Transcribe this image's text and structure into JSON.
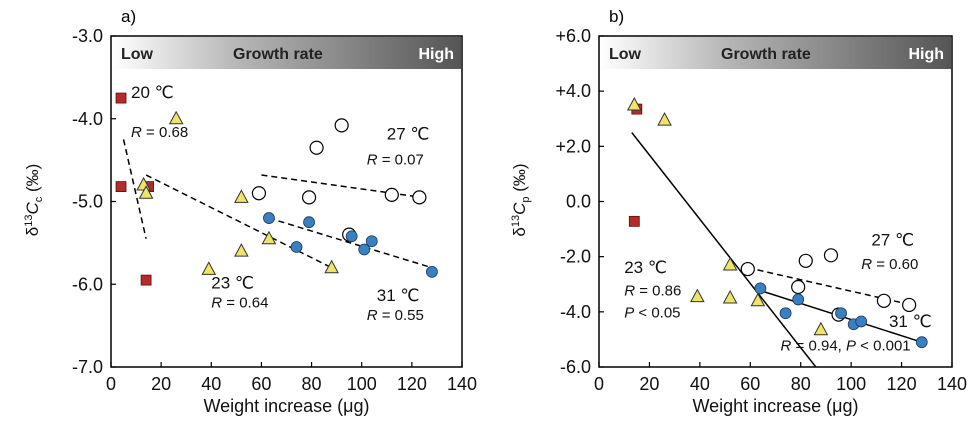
{
  "chart_data": [
    {
      "type": "scatter",
      "panel": "a)",
      "xlabel": "Weight increase (μg)",
      "ylabel_main": "δ",
      "ylabel_sup": "13",
      "ylabel_c": "C",
      "ylabel_sub": "c",
      "ylabel_unit": " (‰)",
      "xlim": [
        0,
        140
      ],
      "ylim": [
        -7.0,
        -3.0
      ],
      "xticks": [
        0,
        20,
        40,
        60,
        80,
        100,
        120,
        140
      ],
      "yticks": [
        -7.0,
        -6.0,
        -5.0,
        -4.0,
        -3.0
      ],
      "ytick_labels": [
        "-7.0",
        "-6.0",
        "-5.0",
        "-4.0",
        "-3.0"
      ],
      "growth_bar": {
        "low": "Low",
        "mid": "Growth rate",
        "high": "High"
      },
      "series": [
        {
          "marker": "square",
          "color": "#b52a2a",
          "points": [
            [
              4,
              -3.75
            ],
            [
              4,
              -4.82
            ],
            [
              14,
              -5.95
            ],
            [
              15,
              -4.82
            ]
          ]
        },
        {
          "marker": "triangle",
          "color": "#efe46a",
          "points": [
            [
              13,
              -4.8
            ],
            [
              14,
              -4.9
            ],
            [
              26,
              -4.0
            ],
            [
              39,
              -5.82
            ],
            [
              52,
              -4.95
            ],
            [
              52,
              -5.6
            ],
            [
              63,
              -5.45
            ],
            [
              88,
              -5.8
            ]
          ]
        },
        {
          "marker": "open-circle",
          "color": "#ffffff",
          "points": [
            [
              59,
              -4.9
            ],
            [
              79,
              -4.95
            ],
            [
              82,
              -4.35
            ],
            [
              92,
              -4.08
            ],
            [
              95,
              -5.4
            ],
            [
              112,
              -4.92
            ],
            [
              123,
              -4.95
            ]
          ]
        },
        {
          "marker": "circle",
          "color": "#3a7fc0",
          "points": [
            [
              63,
              -5.2
            ],
            [
              74,
              -5.55
            ],
            [
              79,
              -5.25
            ],
            [
              96,
              -5.42
            ],
            [
              101,
              -5.58
            ],
            [
              104,
              -5.48
            ],
            [
              128,
              -5.85
            ]
          ]
        }
      ],
      "fit_lines": [
        {
          "dash": true,
          "x1": 5,
          "y1": -4.25,
          "x2": 14,
          "y2": -5.45
        },
        {
          "dash": true,
          "x1": 14,
          "y1": -4.68,
          "x2": 88,
          "y2": -5.8
        },
        {
          "dash": true,
          "x1": 60,
          "y1": -4.68,
          "x2": 124,
          "y2": -4.95
        },
        {
          "dash": true,
          "x1": 63,
          "y1": -5.2,
          "x2": 128,
          "y2": -5.8
        }
      ],
      "annotations": [
        {
          "text": "20 ℃",
          "x": 8,
          "y": -3.75,
          "size": 17
        },
        {
          "text": "R = 0.68",
          "x": 8,
          "y": -4.22,
          "size": 15
        },
        {
          "text": "23 ℃",
          "x": 40,
          "y": -6.05,
          "size": 17
        },
        {
          "text": "R = 0.64",
          "x": 40,
          "y": -6.28,
          "size": 15
        },
        {
          "text": "27 ℃",
          "x": 110,
          "y": -4.25,
          "size": 17
        },
        {
          "text": "R = 0.07",
          "x": 102,
          "y": -4.55,
          "size": 15
        },
        {
          "text": "31 ℃",
          "x": 106,
          "y": -6.2,
          "size": 17
        },
        {
          "text": "R = 0.55",
          "x": 102,
          "y": -6.43,
          "size": 15
        }
      ]
    },
    {
      "type": "scatter",
      "panel": "b)",
      "xlabel": "Weight increase (μg)",
      "ylabel_main": "δ",
      "ylabel_sup": "13",
      "ylabel_c": "C",
      "ylabel_sub": "p",
      "ylabel_unit": " (‰)",
      "xlim": [
        0,
        140
      ],
      "ylim": [
        -6.0,
        6.0
      ],
      "xticks": [
        0,
        20,
        40,
        60,
        80,
        100,
        120,
        140
      ],
      "yticks": [
        -6.0,
        -4.0,
        -2.0,
        0.0,
        2.0,
        4.0,
        6.0
      ],
      "ytick_labels": [
        "-6.0",
        "-4.0",
        "-2.0",
        "0.0",
        "+2.0",
        "+4.0",
        "+6.0"
      ],
      "growth_bar": {
        "low": "Low",
        "mid": "Growth rate",
        "high": "High"
      },
      "series": [
        {
          "marker": "square",
          "color": "#b52a2a",
          "points": [
            [
              14,
              -0.72
            ],
            [
              15,
              3.35
            ]
          ]
        },
        {
          "marker": "triangle",
          "color": "#efe46a",
          "points": [
            [
              14,
              3.5
            ],
            [
              26,
              2.95
            ],
            [
              39,
              -3.45
            ],
            [
              52,
              -3.5
            ],
            [
              52,
              -2.3
            ],
            [
              63,
              -3.6
            ],
            [
              88,
              -4.65
            ]
          ]
        },
        {
          "marker": "open-circle",
          "color": "#ffffff",
          "points": [
            [
              59,
              -2.45
            ],
            [
              79,
              -3.1
            ],
            [
              82,
              -2.15
            ],
            [
              92,
              -1.95
            ],
            [
              95,
              -4.1
            ],
            [
              113,
              -3.6
            ],
            [
              123,
              -3.75
            ]
          ]
        },
        {
          "marker": "circle",
          "color": "#3a7fc0",
          "points": [
            [
              64,
              -3.15
            ],
            [
              74,
              -4.05
            ],
            [
              79,
              -3.55
            ],
            [
              96,
              -4.05
            ],
            [
              101,
              -4.45
            ],
            [
              104,
              -4.35
            ],
            [
              128,
              -5.1
            ]
          ]
        }
      ],
      "fit_lines": [
        {
          "dash": false,
          "x1": 13,
          "y1": 2.5,
          "x2": 86,
          "y2": -6.0
        },
        {
          "dash": true,
          "x1": 59,
          "y1": -2.4,
          "x2": 124,
          "y2": -3.75
        },
        {
          "dash": false,
          "x1": 63,
          "y1": -3.2,
          "x2": 128,
          "y2": -5.1
        }
      ],
      "annotations": [
        {
          "text": "23 ℃",
          "x": 10,
          "y": -2.6,
          "size": 17
        },
        {
          "text": "R = 0.86",
          "x": 10,
          "y": -3.4,
          "size": 15
        },
        {
          "text": "P < 0.05",
          "x": 10,
          "y": -4.2,
          "size": 15
        },
        {
          "text": "27 ℃",
          "x": 108,
          "y": -1.6,
          "size": 17
        },
        {
          "text": "R = 0.60",
          "x": 104,
          "y": -2.45,
          "size": 15
        },
        {
          "text": "31 ℃",
          "x": 115,
          "y": -4.55,
          "size": 17
        },
        {
          "text": "R = 0.94, P < 0.001",
          "x": 72,
          "y": -5.4,
          "size": 15
        }
      ]
    }
  ]
}
